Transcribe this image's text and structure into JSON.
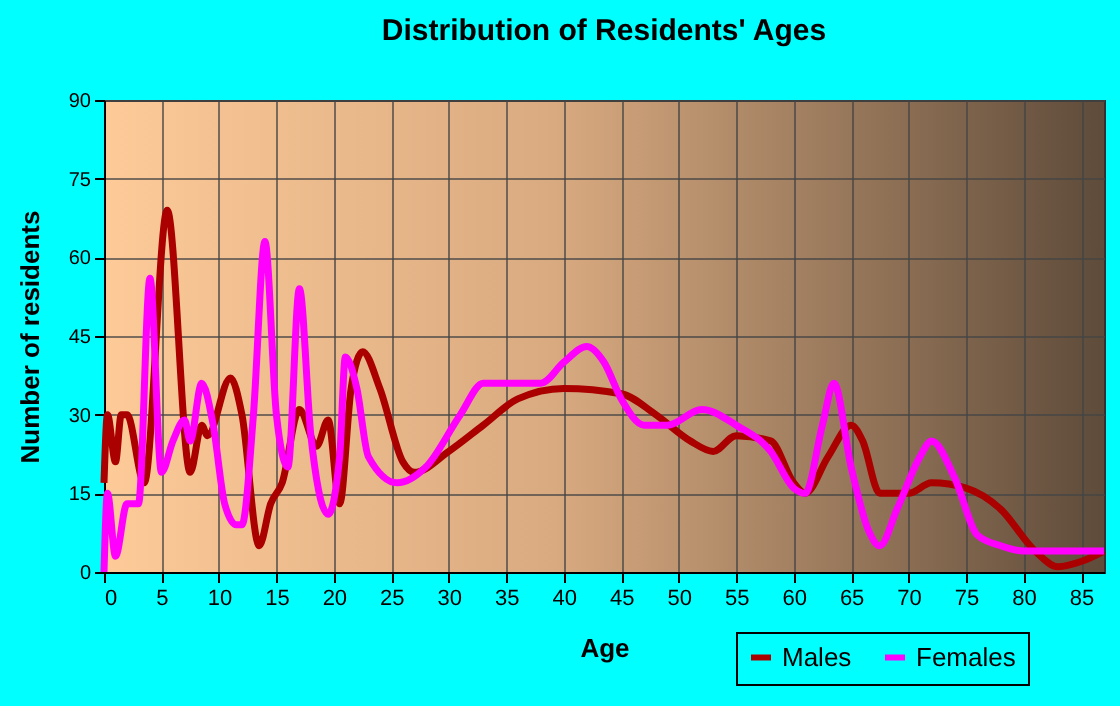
{
  "chart_data": {
    "type": "line",
    "title": "Distribution of Residents' Ages",
    "xlabel": "Age",
    "ylabel": "Number of residents",
    "xlim": [
      0,
      87
    ],
    "xticks": [
      0,
      5,
      10,
      15,
      20,
      25,
      30,
      35,
      40,
      45,
      50,
      55,
      60,
      65,
      70,
      75,
      80,
      85
    ],
    "ylim": [
      0,
      90
    ],
    "yticks": [
      0,
      15,
      30,
      45,
      60,
      75,
      90
    ],
    "grid": true,
    "legend": "bottom right",
    "marker": "none",
    "line_style": "solid",
    "series": [
      {
        "name": "Males",
        "color": "#aa0000",
        "x": [
          0,
          0.3,
          1,
          1.5,
          2,
          3.5,
          5.5,
          7.5,
          8.5,
          9,
          11,
          12,
          13.5,
          14.5,
          15.5,
          17,
          18.5,
          19.5,
          20.5,
          21.5,
          22.5,
          24,
          26,
          27,
          30,
          33,
          36,
          40,
          45,
          48,
          51,
          53,
          55,
          58,
          60,
          61,
          63,
          65,
          66,
          67.5,
          70,
          72,
          75,
          78,
          81,
          83,
          85,
          87
        ],
        "values": [
          17,
          30,
          21,
          30,
          30,
          17,
          69,
          19,
          28,
          26,
          37,
          30,
          5,
          13,
          17,
          31,
          24,
          29,
          13,
          35,
          42,
          35,
          21,
          19,
          23,
          28,
          33,
          35,
          34,
          30,
          25,
          23,
          26,
          25,
          17,
          15,
          22,
          28,
          25,
          15,
          15,
          17,
          16,
          12,
          4,
          1,
          2,
          4
        ]
      },
      {
        "name": "Females",
        "color": "#ff00ff",
        "x": [
          0,
          0.3,
          1,
          2,
          3,
          4,
          5,
          6,
          7,
          7.5,
          8.5,
          9.5,
          10.5,
          11.5,
          12,
          13,
          14,
          15,
          16,
          17,
          18,
          19.5,
          20.5,
          21,
          22,
          23,
          25.5,
          28,
          31,
          33,
          35,
          38,
          40,
          42,
          43.5,
          45,
          47,
          49,
          52,
          55,
          58,
          60,
          61,
          62.5,
          63.5,
          65,
          66.5,
          67.5,
          69,
          71,
          72,
          74,
          76,
          78,
          80,
          87
        ],
        "values": [
          0,
          15,
          3,
          13,
          13,
          56,
          19,
          25,
          29,
          25,
          36,
          28,
          13,
          9,
          9,
          30,
          63,
          30,
          20,
          54,
          26,
          11,
          22,
          41,
          35,
          22,
          17,
          20,
          30,
          36,
          36,
          36,
          40,
          43,
          40,
          33,
          28,
          28,
          31,
          28,
          23,
          16,
          15,
          28,
          36,
          20,
          8,
          5,
          12,
          22,
          25,
          18,
          7,
          5,
          4,
          4
        ]
      }
    ]
  }
}
